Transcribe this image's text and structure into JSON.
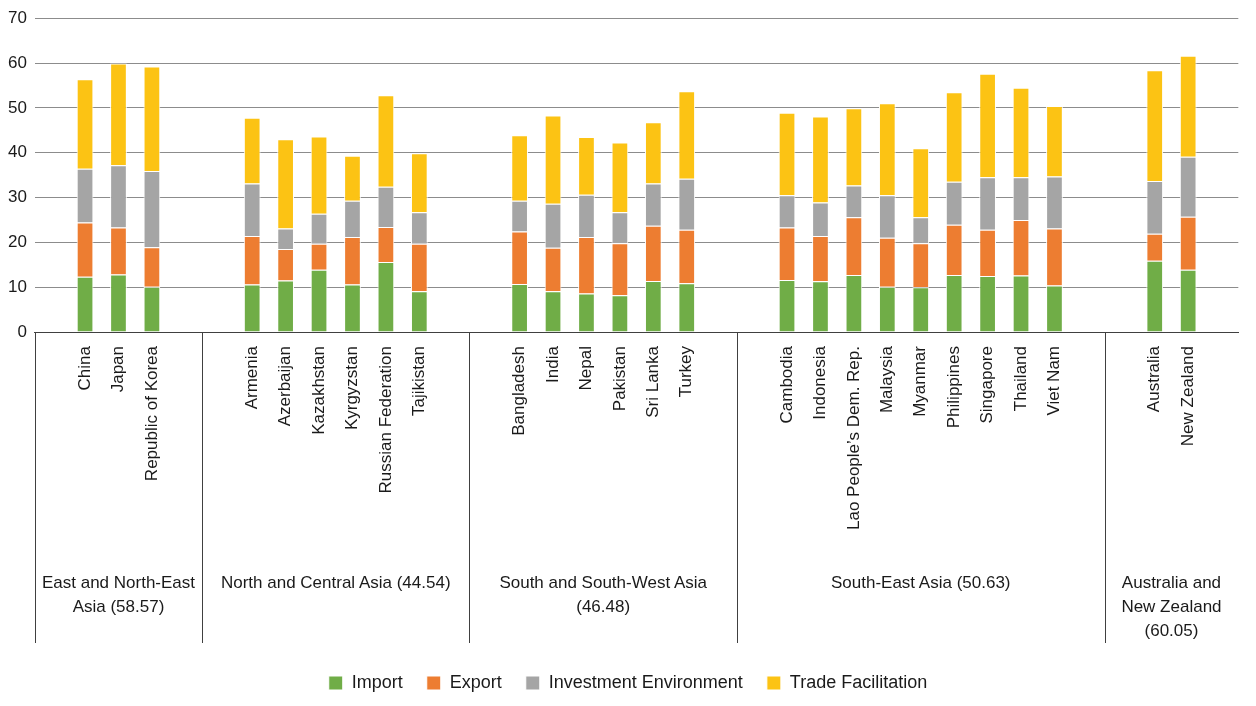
{
  "chart_data": {
    "type": "bar",
    "stacked": true,
    "categories": [
      null,
      "China",
      "Japan",
      "Republic of Korea",
      null,
      null,
      "Armenia",
      "Azerbaijan",
      "Kazakhstan",
      "Kyrgyzstan",
      "Russian Federation",
      "Tajikistan",
      null,
      null,
      "Bangladesh",
      "India",
      "Nepal",
      "Pakistan",
      "Sri Lanka",
      "Turkey",
      null,
      null,
      "Cambodia",
      "Indonesia",
      "Lao People’s Dem. Rep.",
      "Malaysia",
      "Myanmar",
      "Philippines",
      "Singapore",
      "Thailand",
      "Viet Nam",
      null,
      null,
      "Australia",
      "New Zealand",
      null
    ],
    "series": [
      {
        "name": "Import",
        "color": "#70ad47",
        "values": [
          null,
          12.3,
          12.8,
          10.1,
          null,
          null,
          10.6,
          11.5,
          13.9,
          10.6,
          15.6,
          9.1,
          null,
          null,
          10.7,
          9.1,
          8.6,
          8.2,
          11.4,
          10.9,
          null,
          null,
          11.6,
          11.3,
          12.7,
          10.1,
          10.0,
          12.7,
          12.5,
          12.6,
          10.4,
          null,
          null,
          15.9,
          13.9,
          null
        ]
      },
      {
        "name": "Export",
        "color": "#ed7d31",
        "values": [
          null,
          12.1,
          10.5,
          8.8,
          null,
          null,
          10.8,
          7.0,
          5.8,
          10.6,
          7.8,
          10.6,
          null,
          null,
          11.7,
          9.7,
          12.6,
          11.6,
          12.3,
          11.9,
          null,
          null,
          11.7,
          10.1,
          12.9,
          10.9,
          9.8,
          11.2,
          10.3,
          12.4,
          12.7,
          null,
          null,
          6.0,
          11.8,
          null
        ]
      },
      {
        "name": "Investment Environment",
        "color": "#a5a5a5",
        "values": [
          null,
          12.0,
          13.9,
          17.0,
          null,
          null,
          11.7,
          4.6,
          6.7,
          8.1,
          9.0,
          7.0,
          null,
          null,
          6.9,
          9.8,
          9.4,
          6.9,
          9.4,
          11.4,
          null,
          null,
          7.2,
          7.5,
          7.1,
          9.5,
          5.8,
          9.6,
          11.7,
          9.5,
          11.6,
          null,
          null,
          11.8,
          13.4,
          null
        ]
      },
      {
        "name": "Trade Facilitation",
        "color": "#fcc314",
        "values": [
          null,
          20.0,
          22.7,
          23.3,
          null,
          null,
          14.7,
          19.9,
          17.2,
          10.0,
          20.4,
          13.2,
          null,
          null,
          14.6,
          19.7,
          12.9,
          15.6,
          13.7,
          19.5,
          null,
          null,
          18.4,
          19.2,
          17.2,
          20.5,
          15.4,
          20.0,
          23.1,
          20.0,
          15.7,
          null,
          null,
          24.7,
          22.5,
          null
        ]
      }
    ],
    "ylim": [
      0,
      70
    ],
    "yticks": [
      0,
      10,
      20,
      30,
      40,
      50,
      60,
      70
    ],
    "grid": "y",
    "legend": "bottom",
    "annotations": [
      "East and North-East Asia (58.57)",
      "North and Central Asia (44.54)",
      "South and South-West Asia (46.48)",
      "South-East Asia (50.63)",
      "Australia and New Zealand (60.05)"
    ]
  }
}
